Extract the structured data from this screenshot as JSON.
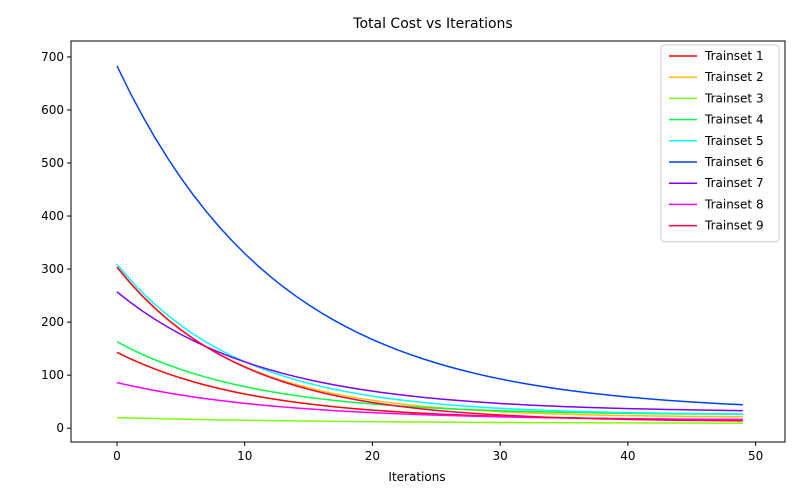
{
  "chart_data": {
    "type": "line",
    "title": "Total Cost vs Iterations",
    "xlabel": "Iterations",
    "ylabel": "",
    "xlim": [
      -3.6,
      52.3
    ],
    "ylim": [
      -26,
      730
    ],
    "xticks": [
      0,
      10,
      20,
      30,
      40,
      50
    ],
    "yticks": [
      0,
      100,
      200,
      300,
      400,
      500,
      600,
      700
    ],
    "grid": false,
    "legend": "top-right",
    "n_points": 50,
    "series": [
      {
        "name": "Trainset 1",
        "color": "#ff0000",
        "model": {
          "start": 143,
          "end": 15,
          "rate": 0.095
        },
        "key_points": [
          [
            0,
            143
          ],
          [
            10,
            70
          ],
          [
            20,
            38
          ],
          [
            30,
            24
          ],
          [
            40,
            18
          ],
          [
            49,
            15
          ]
        ]
      },
      {
        "name": "Trainset 2",
        "color": "#ffbf00",
        "model": {
          "start": 303,
          "end": 20,
          "rate": 0.108
        },
        "key_points": [
          [
            0,
            303
          ],
          [
            10,
            145
          ],
          [
            20,
            73
          ],
          [
            30,
            38
          ],
          [
            40,
            26
          ],
          [
            49,
            20
          ]
        ]
      },
      {
        "name": "Trainset 3",
        "color": "#80ff00",
        "model": {
          "start": 20,
          "end": 9,
          "rate": 0.06
        },
        "key_points": [
          [
            0,
            20
          ],
          [
            10,
            15
          ],
          [
            20,
            12
          ],
          [
            30,
            10
          ],
          [
            40,
            10
          ],
          [
            49,
            9
          ]
        ]
      },
      {
        "name": "Trainset 4",
        "color": "#00ff40",
        "model": {
          "start": 163,
          "end": 25,
          "rate": 0.095
        },
        "key_points": [
          [
            0,
            163
          ],
          [
            10,
            85
          ],
          [
            20,
            50
          ],
          [
            30,
            36
          ],
          [
            40,
            28
          ],
          [
            49,
            25
          ]
        ]
      },
      {
        "name": "Trainset 5",
        "color": "#00ffff",
        "model": {
          "start": 309,
          "end": 25,
          "rate": 0.104
        },
        "key_points": [
          [
            0,
            309
          ],
          [
            10,
            149
          ],
          [
            20,
            76
          ],
          [
            30,
            44
          ],
          [
            40,
            32
          ],
          [
            49,
            25
          ]
        ]
      },
      {
        "name": "Trainset 6",
        "color": "#0040ff",
        "model": {
          "start": 683,
          "end": 30,
          "rate": 0.078
        },
        "key_points": [
          [
            0,
            683
          ],
          [
            10,
            340
          ],
          [
            20,
            165
          ],
          [
            30,
            85
          ],
          [
            40,
            48
          ],
          [
            49,
            33
          ]
        ]
      },
      {
        "name": "Trainset 7",
        "color": "#8000ff",
        "model": {
          "start": 257,
          "end": 30,
          "rate": 0.087
        },
        "key_points": [
          [
            0,
            257
          ],
          [
            10,
            132
          ],
          [
            20,
            76
          ],
          [
            30,
            50
          ],
          [
            40,
            38
          ],
          [
            49,
            33
          ]
        ]
      },
      {
        "name": "Trainset 8",
        "color": "#ff00ff",
        "model": {
          "start": 86,
          "end": 15,
          "rate": 0.08
        },
        "key_points": [
          [
            0,
            86
          ],
          [
            10,
            47
          ],
          [
            20,
            28
          ],
          [
            30,
            20
          ],
          [
            40,
            16
          ],
          [
            49,
            15
          ]
        ]
      },
      {
        "name": "Trainset 9",
        "color": "#ff0040",
        "model": {
          "start": 304,
          "end": 12,
          "rate": 0.104
        },
        "key_points": [
          [
            0,
            304
          ],
          [
            10,
            143
          ],
          [
            20,
            68
          ],
          [
            30,
            36
          ],
          [
            40,
            20
          ],
          [
            49,
            14
          ]
        ]
      }
    ]
  }
}
